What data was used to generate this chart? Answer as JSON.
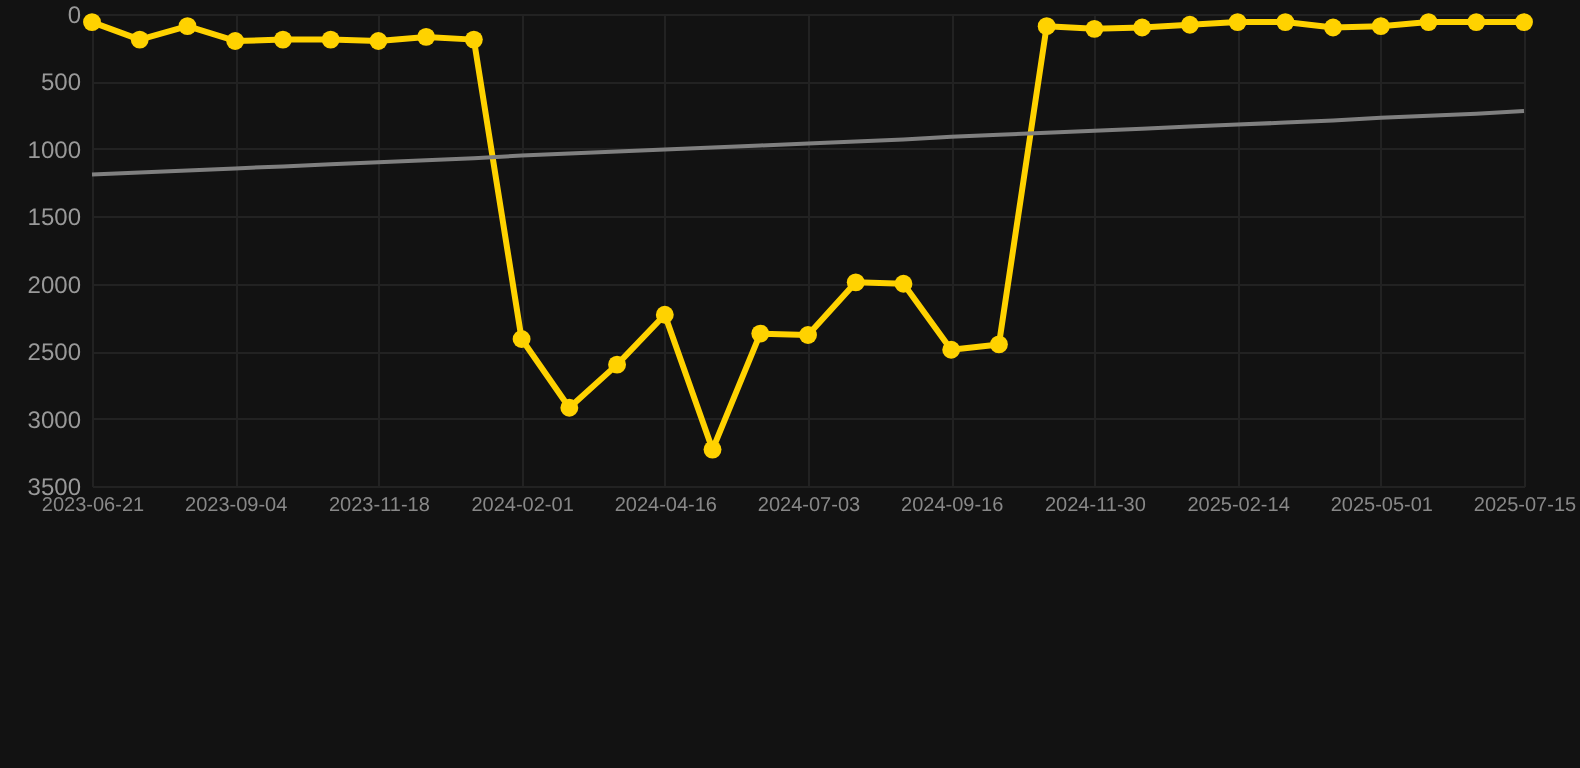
{
  "chart_data": {
    "type": "line",
    "categories": [
      "2023-06-21",
      null,
      null,
      "2023-09-04",
      null,
      null,
      "2023-11-18",
      null,
      null,
      "2024-02-01",
      null,
      null,
      "2024-04-16",
      null,
      null,
      "2024-07-03",
      null,
      null,
      "2024-09-16",
      null,
      null,
      "2024-11-30",
      null,
      null,
      "2025-02-14",
      null,
      null,
      "2025-05-01",
      null,
      null,
      "2025-07-15"
    ],
    "series": [
      {
        "color": "#ffd200",
        "values": [
          60,
          190,
          90,
          200,
          190,
          190,
          200,
          170,
          190,
          2410,
          2920,
          2600,
          2230,
          3230,
          2370,
          2380,
          1990,
          2000,
          2490,
          2450,
          90,
          110,
          100,
          80,
          60,
          60,
          100,
          90,
          60,
          60,
          60
        ]
      },
      {
        "color": "#808080",
        "marker": "none",
        "values": [
          1190,
          1175,
          1160,
          1145,
          1130,
          1115,
          1100,
          1085,
          1070,
          1050,
          1035,
          1020,
          1005,
          990,
          975,
          960,
          945,
          930,
          910,
          895,
          880,
          865,
          850,
          835,
          820,
          805,
          790,
          770,
          755,
          740,
          720
        ]
      }
    ],
    "ylim": [
      3500,
      0
    ],
    "yticks": [
      0,
      500,
      1000,
      1500,
      2000,
      2500,
      3000,
      3500
    ],
    "grid": true,
    "marker": "circle"
  }
}
